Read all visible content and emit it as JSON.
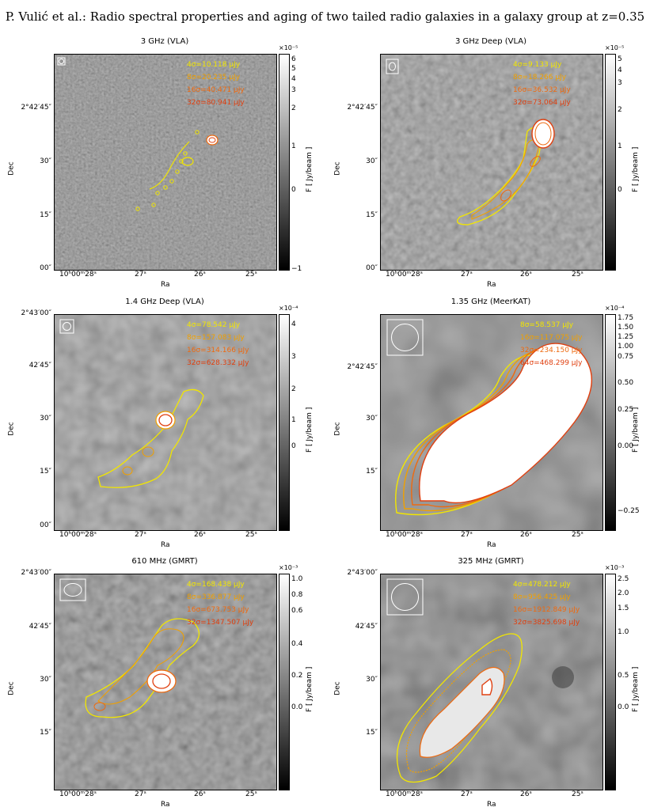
{
  "header": "P. Vulić et al.: Radio spectral properties and aging of two tailed radio galaxies in a galaxy group at z=0.35",
  "colors": {
    "c4": "#f2e600",
    "c8": "#f0a000",
    "c16": "#ee6a10",
    "c32": "#e04010"
  },
  "panels": [
    {
      "title": "3 GHz (VLA)",
      "xlabel": "Ra",
      "ylabel": "Dec",
      "cbar_label": "F [ Jy/beam ]",
      "cbar_exp": "×10⁻⁵",
      "xticks": [
        "10ʰ00ᵐ28ˢ",
        "27ˢ",
        "26ˢ",
        "25ˢ"
      ],
      "yticks": [
        "2°42′45″",
        "30″",
        "15″",
        "00″"
      ],
      "cbar_ticks": [
        "6",
        "5",
        "4",
        "3",
        "2",
        "1",
        "0",
        "−1"
      ],
      "contours": [
        "4σ=10.118 μJy",
        "8σ=20.235 μJy",
        "16σ=40.471 μJy",
        "32σ=80.941 μJy"
      ],
      "beam": "small"
    },
    {
      "title": "3 GHz Deep (VLA)",
      "xlabel": "Ra",
      "ylabel": "Dec",
      "cbar_label": "F [ Jy/beam ]",
      "cbar_exp": "×10⁻⁵",
      "xticks": [
        "10ʰ00ᵐ28ˢ",
        "27ˢ",
        "26ˢ",
        "25ˢ"
      ],
      "yticks": [
        "2°42′45″",
        "30″",
        "15″",
        "00″"
      ],
      "cbar_ticks": [
        "5",
        "4",
        "3",
        "2",
        "1",
        "0"
      ],
      "contours": [
        "4σ=9.133 μJy",
        "8σ=18.266 μJy",
        "16σ=36.532 μJy",
        "32σ=73.064 μJy"
      ],
      "beam": "small2"
    },
    {
      "title": "1.4 GHz Deep (VLA)",
      "xlabel": "Ra",
      "ylabel": "Dec",
      "cbar_label": "F [ Jy/beam ]",
      "cbar_exp": "×10⁻⁴",
      "xticks": [
        "10ʰ00ᵐ28ˢ",
        "27ˢ",
        "26ˢ",
        "25ˢ"
      ],
      "yticks": [
        "2°43′00″",
        "42′45″",
        "30″",
        "15″",
        "00″"
      ],
      "cbar_ticks": [
        "4",
        "3",
        "2",
        "1",
        "0"
      ],
      "contours": [
        "4σ=78.542 μJy",
        "8σ=157.083 μJy",
        "16σ=314.166 μJy",
        "32σ=628.332 μJy"
      ],
      "beam": "mid"
    },
    {
      "title": "1.35 GHz (MeerKAT)",
      "xlabel": "Ra",
      "ylabel": "Dec",
      "cbar_label": "F [ Jy/beam ]",
      "cbar_exp": "×10⁻⁴",
      "xticks": [
        "10ʰ00ᵐ28ˢ",
        "27ˢ",
        "26ˢ",
        "25ˢ"
      ],
      "yticks": [
        "2°42′45″",
        "30″",
        "15″"
      ],
      "cbar_ticks": [
        "1.75",
        "1.50",
        "1.25",
        "1.00",
        "0.75",
        "0.50",
        "0.25",
        "0.00",
        "−0.25"
      ],
      "contours": [
        "8σ=58.537 μJy",
        "16σ=117.075 μJy",
        "32σ=234.150 μJy",
        "64σ=468.299 μJy"
      ],
      "beam": "big"
    },
    {
      "title": "610 MHz (GMRT)",
      "xlabel": "Ra",
      "ylabel": "Dec",
      "cbar_label": "F [ Jy/beam ]",
      "cbar_exp": "×10⁻³",
      "xticks": [
        "10ʰ00ᵐ28ˢ",
        "27ˢ",
        "26ˢ",
        "25ˢ"
      ],
      "yticks": [
        "2°43′00″",
        "42′45″",
        "30″",
        "15″"
      ],
      "cbar_ticks": [
        "1.0",
        "0.8",
        "0.6",
        "0.4",
        "0.2",
        "0.0"
      ],
      "contours": [
        "4σ=168.438 μJy",
        "8σ=336.877 μJy",
        "16σ=673.753 μJy",
        "32σ=1347.507 μJy"
      ],
      "beam": "ellipse"
    },
    {
      "title": "325 MHz (GMRT)",
      "xlabel": "Ra",
      "ylabel": "Dec",
      "cbar_label": "F [ Jy/beam ]",
      "cbar_exp": "×10⁻³",
      "xticks": [
        "10ʰ00ᵐ28ˢ",
        "27ˢ",
        "26ˢ",
        "25ˢ"
      ],
      "yticks": [
        "2°43′00″",
        "42′45″",
        "30″",
        "15″"
      ],
      "cbar_ticks": [
        "2.5",
        "2.0",
        "1.5",
        "1.0",
        "0.5",
        "0.0"
      ],
      "contours": [
        "4σ=478.212 μJy",
        "8σ=956.425 μJy",
        "16σ=1912.849 μJy",
        "32σ=3825.698 μJy"
      ],
      "beam": "big"
    }
  ]
}
